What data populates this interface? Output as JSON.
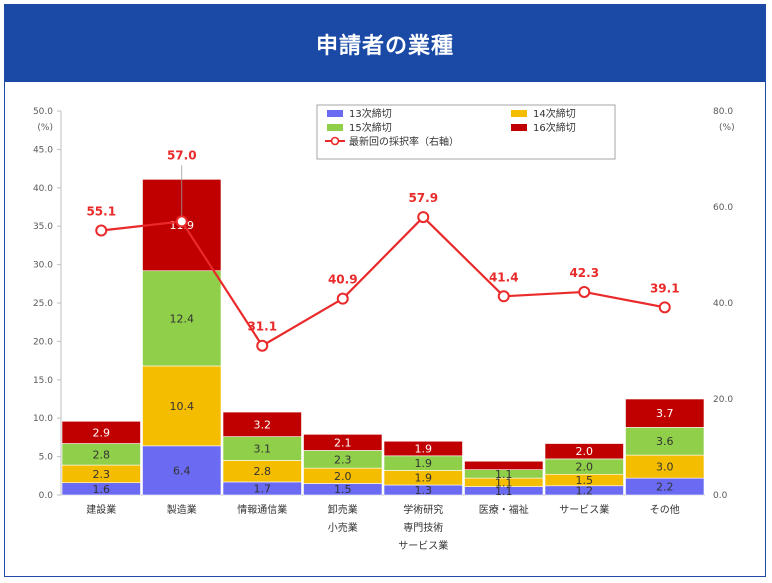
{
  "banner": {
    "title": "申請者の業種"
  },
  "colors": {
    "r13": "#6a6af2",
    "r14": "#f5bd00",
    "r15": "#8fcf4a",
    "r16": "#c00000",
    "line": "#ea2a2a",
    "banner": "#1b4aa6"
  },
  "chart_data": {
    "type": "bar",
    "stacked": true,
    "categories": [
      [
        "建設業"
      ],
      [
        "製造業"
      ],
      [
        "情報通信業"
      ],
      [
        "卸売業",
        "小売業"
      ],
      [
        "学術研究",
        "専門技術",
        "サービス業"
      ],
      [
        "医療・福祉"
      ],
      [
        "サービス業"
      ],
      [
        "その他"
      ]
    ],
    "series": [
      {
        "name": "13次締切",
        "values": [
          1.6,
          6.4,
          1.7,
          1.5,
          1.3,
          1.1,
          1.2,
          2.2
        ],
        "labels": [
          "1.6",
          "6.4",
          "1.7",
          "1.5",
          "1.3",
          "1.1",
          "1.2",
          "2.2"
        ]
      },
      {
        "name": "14次締切",
        "values": [
          2.3,
          10.4,
          2.8,
          2.0,
          1.9,
          1.1,
          1.5,
          3.0
        ],
        "labels": [
          "2.3",
          "10.4",
          "2.8",
          "2.0",
          "1.9",
          "1.1",
          "1.5",
          "3.0"
        ]
      },
      {
        "name": "15次締切",
        "values": [
          2.8,
          12.4,
          3.1,
          2.3,
          1.9,
          1.1,
          2.0,
          3.6
        ],
        "labels": [
          "2.8",
          "12.4",
          "3.1",
          "2.3",
          "1.9",
          "1.1",
          "2.0",
          "3.6"
        ]
      },
      {
        "name": "16次締切",
        "values": [
          2.9,
          11.9,
          3.2,
          2.1,
          1.9,
          1.1,
          2.0,
          3.7
        ],
        "labels": [
          "2.9",
          "11.9",
          "3.2",
          "2.1",
          "1.9",
          "",
          "2.0",
          "3.7"
        ]
      }
    ],
    "line_series": {
      "name": "最新回の採択率（右軸）",
      "values": [
        55.1,
        57.0,
        31.1,
        40.9,
        57.9,
        41.4,
        42.3,
        39.1
      ],
      "labels": [
        "55.1",
        "57.0",
        "31.1",
        "40.9",
        "57.9",
        "41.4",
        "42.3",
        "39.1"
      ]
    },
    "y_left": {
      "min": 0,
      "max": 50,
      "ticks": [
        "0.0",
        "5.0",
        "10.0",
        "15.0",
        "20.0",
        "25.0",
        "30.0",
        "35.0",
        "40.0",
        "45.0",
        "50.0"
      ],
      "unit": "(%)"
    },
    "y_right": {
      "min": 0,
      "max": 80,
      "ticks": [
        "0.0",
        "20.0",
        "40.0",
        "60.0",
        "80.0"
      ],
      "unit": "(%)"
    },
    "grid": false,
    "legend_position": "top-right"
  }
}
